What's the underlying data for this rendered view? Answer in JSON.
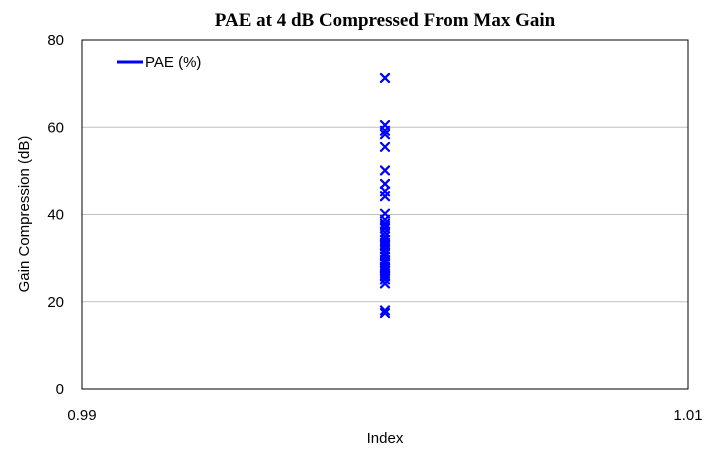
{
  "chart_data": {
    "type": "scatter",
    "title": "PAE at 4 dB Compressed From Max Gain",
    "xlabel": "Index",
    "ylabel": "Gain Compression (dB)",
    "xlim": [
      0.99,
      1.01
    ],
    "ylim": [
      0,
      80
    ],
    "x_ticks": [
      "0.99",
      "1.01"
    ],
    "y_ticks": [
      "0",
      "20",
      "40",
      "60",
      "80"
    ],
    "y_tick_values": [
      0,
      20,
      40,
      60,
      80
    ],
    "grid": "horizontal",
    "legend": {
      "placement": "top-left",
      "entries": [
        "PAE (%)"
      ]
    },
    "marker": "x",
    "series": [
      {
        "name": "PAE (%)",
        "color": "#0000ff",
        "x": [
          1,
          1,
          1,
          1,
          1,
          1,
          1,
          1,
          1,
          1,
          1,
          1,
          1,
          1,
          1,
          1,
          1,
          1,
          1,
          1,
          1,
          1,
          1,
          1,
          1,
          1,
          1,
          1,
          1,
          1,
          1,
          1,
          1,
          1,
          1,
          1
        ],
        "y": [
          71.3,
          60.5,
          59.2,
          58.4,
          55.5,
          50.1,
          47.0,
          45.3,
          44.2,
          40.2,
          38.8,
          37.9,
          36.8,
          35.9,
          35.0,
          34.2,
          33.5,
          32.8,
          32.0,
          31.2,
          30.4,
          29.6,
          28.8,
          28.0,
          27.2,
          26.5,
          25.8,
          25.1,
          24.2,
          18.0,
          17.4,
          37.4,
          33.0,
          29.0,
          27.6,
          26.0
        ]
      }
    ]
  }
}
